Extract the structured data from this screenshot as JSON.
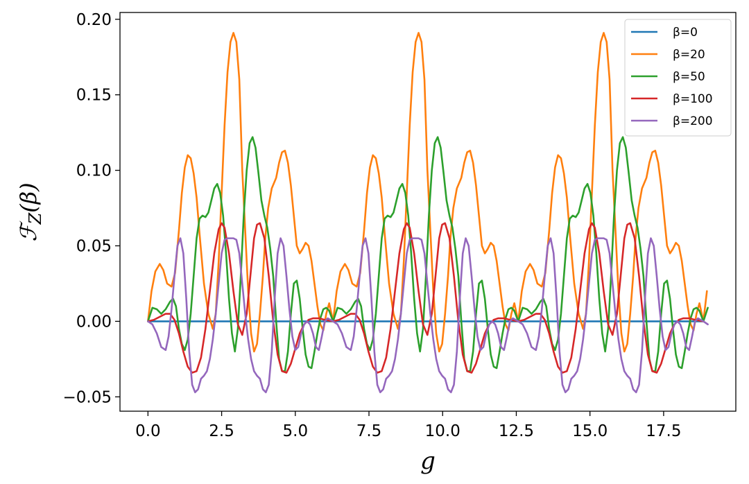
{
  "chart_data": {
    "type": "line",
    "title": "",
    "xlabel": "g",
    "ylabel": "ℱZ(β)",
    "ylabel_parts": {
      "main": "ℱ",
      "sub": "Z",
      "arg": "(β)"
    },
    "xlim": [
      -0.95,
      19.95
    ],
    "ylim": [
      -0.0595,
      0.2045
    ],
    "xticks": [
      0.0,
      2.5,
      5.0,
      7.5,
      10.0,
      12.5,
      15.0,
      17.5
    ],
    "xtick_labels": [
      "0.0",
      "2.5",
      "5.0",
      "7.5",
      "10.0",
      "12.5",
      "15.0",
      "17.5"
    ],
    "yticks": [
      -0.05,
      0.0,
      0.05,
      0.1,
      0.15,
      0.2
    ],
    "ytick_labels": [
      "−0.05",
      "0.00",
      "0.05",
      "0.10",
      "0.15",
      "0.20"
    ],
    "grid": false,
    "legend_position": "top-right",
    "period": 6.283,
    "series": [
      {
        "name": "β=0",
        "color": "#1f77b4",
        "x": [
          0.0,
          0.8,
          1.6,
          2.4,
          3.2,
          4.0,
          4.8,
          5.6,
          6.283
        ],
        "y": [
          0.0,
          0.0,
          0.0,
          0.0,
          0.0,
          0.0,
          0.0,
          0.0,
          0.0
        ]
      },
      {
        "name": "β=20",
        "color": "#ff7f0e",
        "x": [
          0.0,
          0.12,
          0.25,
          0.4,
          0.52,
          0.65,
          0.8,
          0.92,
          1.05,
          1.15,
          1.25,
          1.35,
          1.45,
          1.55,
          1.65,
          1.75,
          1.9,
          2.05,
          2.2,
          2.3,
          2.4,
          2.5,
          2.6,
          2.7,
          2.8,
          2.9,
          3.0,
          3.1,
          3.15,
          3.2,
          3.3,
          3.4,
          3.5,
          3.6,
          3.7,
          3.8,
          3.9,
          3.98,
          4.08,
          4.2,
          4.35,
          4.45,
          4.55,
          4.65,
          4.75,
          4.85,
          4.95,
          5.05,
          5.15,
          5.25,
          5.35,
          5.45,
          5.55,
          5.65,
          5.75,
          5.85,
          5.95,
          6.05,
          6.15,
          6.283
        ],
        "y": [
          0.0,
          0.02,
          0.033,
          0.038,
          0.034,
          0.025,
          0.023,
          0.032,
          0.06,
          0.085,
          0.102,
          0.11,
          0.108,
          0.098,
          0.082,
          0.058,
          0.025,
          0.005,
          -0.005,
          0.005,
          0.04,
          0.085,
          0.13,
          0.165,
          0.185,
          0.191,
          0.185,
          0.16,
          0.13,
          0.1,
          0.06,
          0.02,
          -0.008,
          -0.02,
          -0.015,
          0.005,
          0.03,
          0.055,
          0.075,
          0.088,
          0.095,
          0.105,
          0.112,
          0.113,
          0.105,
          0.09,
          0.07,
          0.05,
          0.045,
          0.048,
          0.052,
          0.05,
          0.04,
          0.025,
          0.01,
          -0.002,
          -0.006,
          0.005,
          0.012,
          0.0
        ]
      },
      {
        "name": "β=50",
        "color": "#2ca02c",
        "x": [
          0.0,
          0.15,
          0.3,
          0.45,
          0.6,
          0.75,
          0.85,
          0.95,
          1.05,
          1.15,
          1.25,
          1.35,
          1.45,
          1.55,
          1.65,
          1.75,
          1.85,
          1.95,
          2.05,
          2.15,
          2.25,
          2.35,
          2.45,
          2.55,
          2.65,
          2.75,
          2.85,
          2.95,
          3.05,
          3.15,
          3.25,
          3.35,
          3.45,
          3.55,
          3.65,
          3.75,
          3.85,
          3.95,
          4.05,
          4.15,
          4.25,
          4.35,
          4.45,
          4.55,
          4.65,
          4.75,
          4.85,
          4.95,
          5.05,
          5.15,
          5.25,
          5.35,
          5.45,
          5.55,
          5.65,
          5.75,
          5.85,
          5.95,
          6.05,
          6.15,
          6.283
        ],
        "y": [
          0.0,
          0.009,
          0.008,
          0.005,
          0.008,
          0.013,
          0.015,
          0.01,
          -0.005,
          -0.015,
          -0.019,
          -0.012,
          0.005,
          0.03,
          0.055,
          0.068,
          0.07,
          0.069,
          0.072,
          0.08,
          0.088,
          0.091,
          0.085,
          0.07,
          0.045,
          0.015,
          -0.008,
          -0.02,
          -0.005,
          0.03,
          0.07,
          0.1,
          0.118,
          0.122,
          0.115,
          0.098,
          0.08,
          0.07,
          0.062,
          0.048,
          0.03,
          0.0,
          -0.025,
          -0.033,
          -0.033,
          -0.02,
          0.005,
          0.025,
          0.027,
          0.015,
          -0.005,
          -0.022,
          -0.03,
          -0.031,
          -0.02,
          -0.008,
          0.002,
          0.008,
          0.009,
          0.007,
          0.0
        ]
      },
      {
        "name": "β=100",
        "color": "#d62728",
        "x": [
          0.0,
          0.2,
          0.4,
          0.6,
          0.75,
          0.9,
          1.05,
          1.2,
          1.35,
          1.5,
          1.65,
          1.8,
          1.95,
          2.1,
          2.25,
          2.4,
          2.5,
          2.6,
          2.75,
          2.9,
          3.05,
          3.2,
          3.35,
          3.5,
          3.6,
          3.7,
          3.8,
          3.95,
          4.1,
          4.25,
          4.4,
          4.55,
          4.7,
          4.85,
          5.0,
          5.15,
          5.3,
          5.45,
          5.6,
          5.8,
          6.0,
          6.283
        ],
        "y": [
          0.0,
          0.001,
          0.003,
          0.005,
          0.005,
          0.001,
          -0.008,
          -0.02,
          -0.03,
          -0.034,
          -0.033,
          -0.024,
          -0.005,
          0.02,
          0.045,
          0.061,
          0.065,
          0.062,
          0.045,
          0.02,
          -0.002,
          -0.009,
          0.005,
          0.035,
          0.055,
          0.064,
          0.065,
          0.055,
          0.03,
          0.0,
          -0.022,
          -0.033,
          -0.034,
          -0.028,
          -0.018,
          -0.008,
          -0.002,
          0.001,
          0.002,
          0.002,
          0.001,
          0.0
        ]
      },
      {
        "name": "β=200",
        "color": "#9467bd",
        "x": [
          0.0,
          0.15,
          0.3,
          0.45,
          0.6,
          0.7,
          0.8,
          0.9,
          1.0,
          1.1,
          1.2,
          1.3,
          1.4,
          1.5,
          1.6,
          1.7,
          1.8,
          1.9,
          2.0,
          2.1,
          2.2,
          2.3,
          2.4,
          2.5,
          2.6,
          2.7,
          2.8,
          2.9,
          3.0,
          3.1,
          3.2,
          3.3,
          3.4,
          3.5,
          3.6,
          3.7,
          3.8,
          3.9,
          4.0,
          4.1,
          4.2,
          4.3,
          4.4,
          4.5,
          4.6,
          4.7,
          4.8,
          4.9,
          5.0,
          5.1,
          5.2,
          5.3,
          5.4,
          5.5,
          5.6,
          5.7,
          5.8,
          5.9,
          6.0,
          6.1,
          6.283
        ],
        "y": [
          0.0,
          -0.002,
          -0.008,
          -0.017,
          -0.019,
          -0.01,
          0.008,
          0.03,
          0.05,
          0.055,
          0.045,
          0.015,
          -0.02,
          -0.042,
          -0.047,
          -0.045,
          -0.038,
          -0.036,
          -0.033,
          -0.025,
          -0.012,
          0.005,
          0.025,
          0.045,
          0.054,
          0.055,
          0.055,
          0.055,
          0.054,
          0.045,
          0.025,
          0.005,
          -0.012,
          -0.025,
          -0.033,
          -0.036,
          -0.038,
          -0.045,
          -0.047,
          -0.042,
          -0.02,
          0.015,
          0.045,
          0.055,
          0.05,
          0.03,
          0.008,
          -0.01,
          -0.019,
          -0.017,
          -0.008,
          -0.002,
          0.0,
          -0.002,
          -0.008,
          -0.017,
          -0.019,
          -0.01,
          0.0,
          0.002,
          0.0
        ]
      }
    ]
  }
}
